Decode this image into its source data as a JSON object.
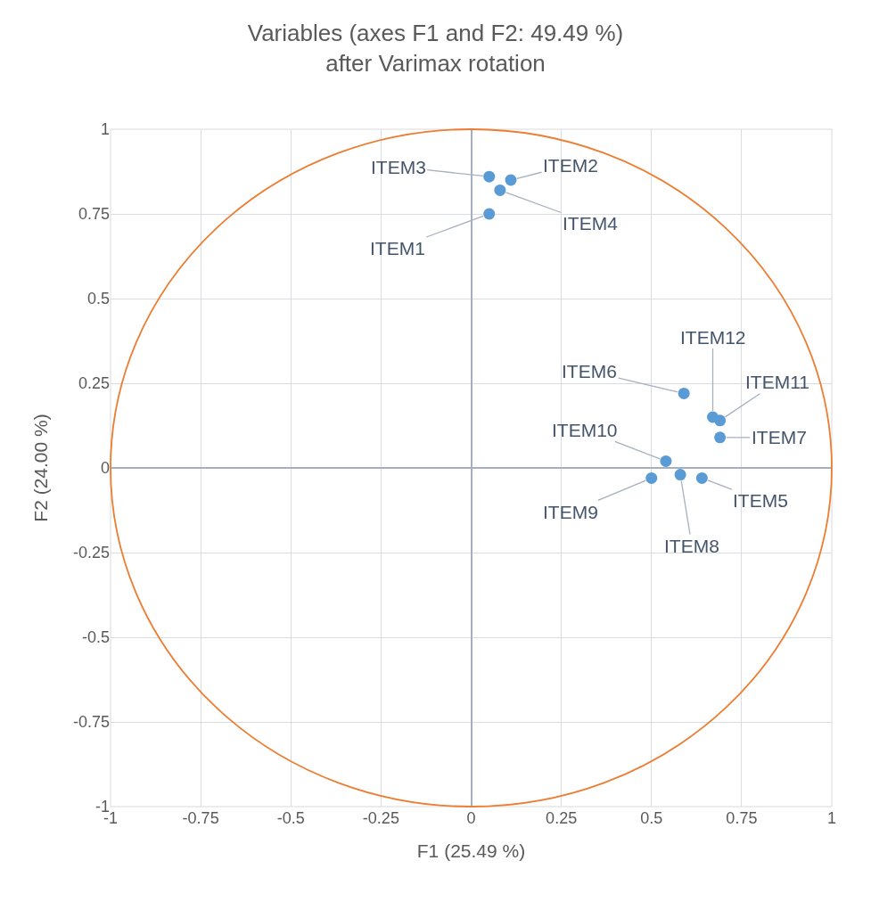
{
  "chart_data": {
    "type": "scatter",
    "title": "Variables (axes F1 and F2: 49.49 %)\nafter Varimax rotation",
    "xlabel": "F1 (25.49 %)",
    "ylabel": "F2 (24.00 %)",
    "xlim": [
      -1,
      1
    ],
    "ylim": [
      -1,
      1
    ],
    "xticks": [
      -1,
      -0.75,
      -0.5,
      -0.25,
      0,
      0.25,
      0.5,
      0.75,
      1
    ],
    "yticks": [
      -1,
      -0.75,
      -0.5,
      -0.25,
      0,
      0.25,
      0.5,
      0.75,
      1
    ],
    "grid": true,
    "marker": "circle",
    "series": [
      {
        "color": "#5b9bd5",
        "x": [
          0.05,
          0.11,
          0.05,
          0.08,
          0.64,
          0.59,
          0.69,
          0.58,
          0.5,
          0.54,
          0.69,
          0.67
        ],
        "values": [
          0.75,
          0.85,
          0.86,
          0.82,
          -0.03,
          0.22,
          0.09,
          -0.02,
          -0.03,
          0.02,
          0.14,
          0.15
        ]
      }
    ],
    "annotations": [
      {
        "text": "ITEM1",
        "x": 0.05,
        "y": 0.75
      },
      {
        "text": "ITEM2",
        "x": 0.11,
        "y": 0.85
      },
      {
        "text": "ITEM3",
        "x": 0.05,
        "y": 0.86
      },
      {
        "text": "ITEM4",
        "x": 0.08,
        "y": 0.82
      },
      {
        "text": "ITEM5",
        "x": 0.64,
        "y": -0.03
      },
      {
        "text": "ITEM6",
        "x": 0.59,
        "y": 0.22
      },
      {
        "text": "ITEM7",
        "x": 0.69,
        "y": 0.09
      },
      {
        "text": "ITEM8",
        "x": 0.58,
        "y": -0.02
      },
      {
        "text": "ITEM9",
        "x": 0.5,
        "y": -0.03
      },
      {
        "text": "ITEM10",
        "x": 0.54,
        "y": 0.02
      },
      {
        "text": "ITEM11",
        "x": 0.69,
        "y": 0.14
      },
      {
        "text": "ITEM12",
        "x": 0.67,
        "y": 0.15
      }
    ]
  }
}
